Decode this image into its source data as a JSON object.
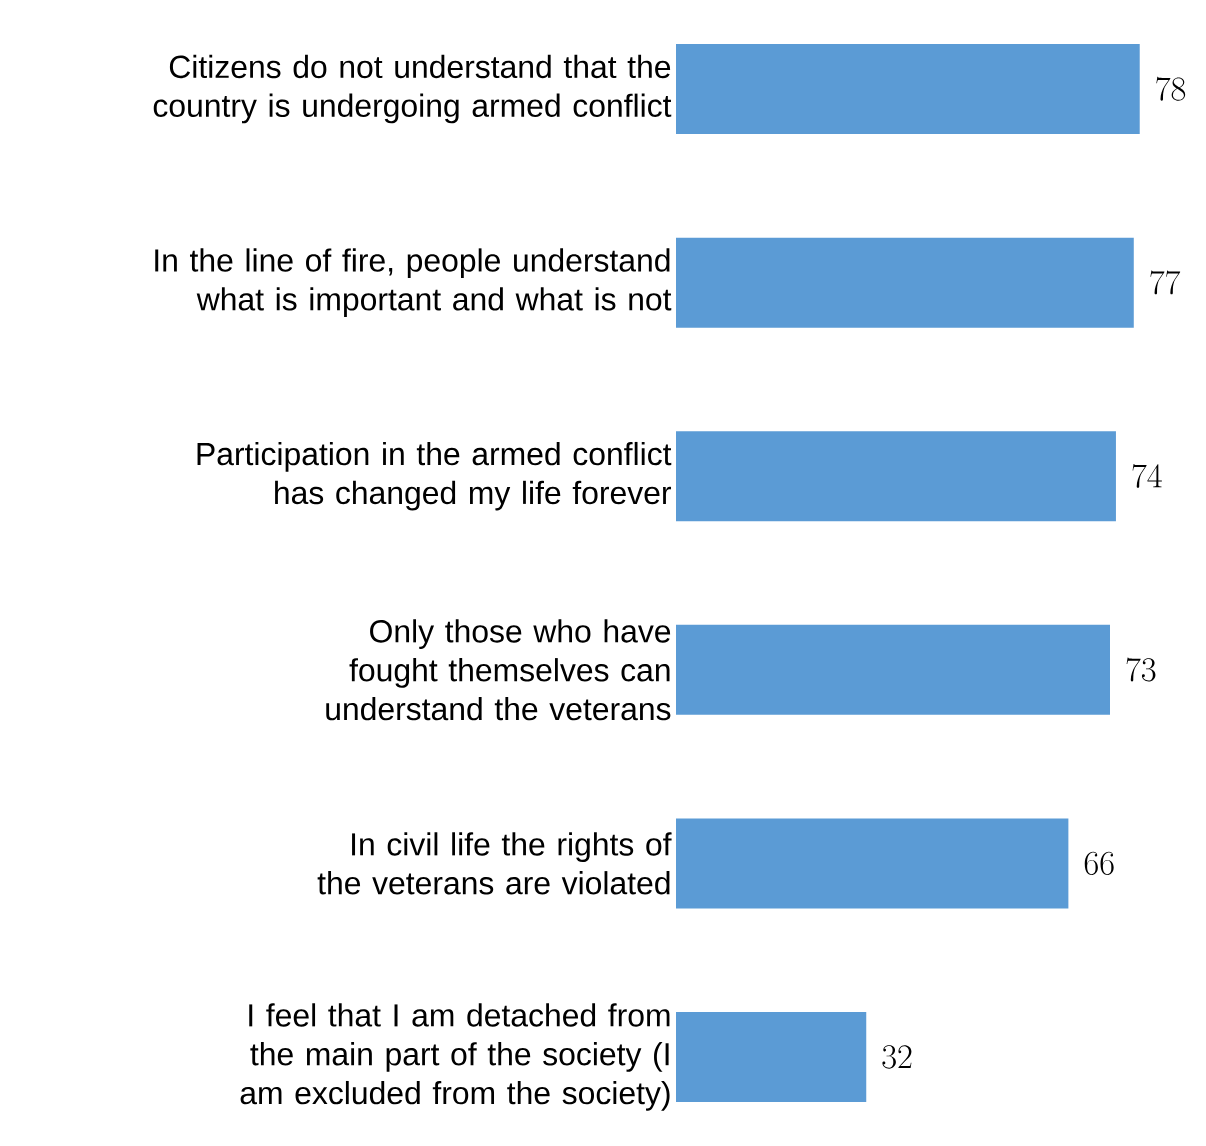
{
  "chart_data": {
    "type": "bar",
    "orientation": "horizontal",
    "categories": [
      "Citizens do not understand that the country is undergoing armed conflict",
      "In the line of fire, people understand what is important and what is not",
      "Participation in the armed conflict has changed my life forever",
      "Only those who have fought themselves can understand the veterans",
      "In civil life the rights of the veterans are violated",
      "I feel that I am detached from the main part of the society (I am excluded from the society)"
    ],
    "values": [
      78,
      77,
      74,
      73,
      66,
      32
    ],
    "color": "#5b9bd5",
    "data_labels": true
  }
}
